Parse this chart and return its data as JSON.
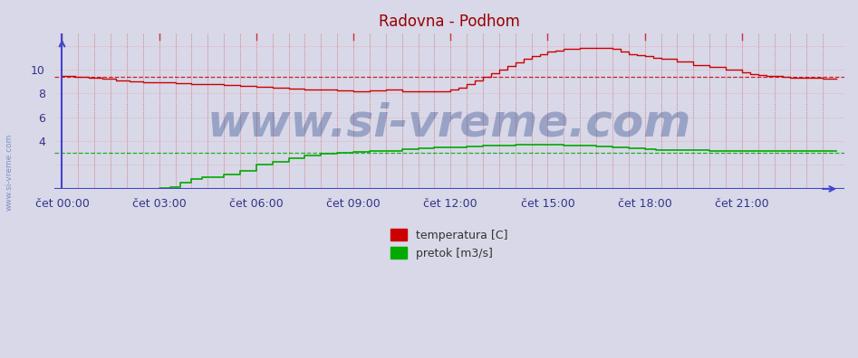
{
  "title": "Radovna - Podhom",
  "title_color": "#990000",
  "bg_color": "#d8d8e8",
  "plot_bg_color": "#d8d8e8",
  "xlabel": "",
  "ylabel": "",
  "ylim": [
    0,
    13.0
  ],
  "xlim_min": 0,
  "xlim_max": 287,
  "yticks": [
    4,
    6,
    8,
    10
  ],
  "xtick_labels": [
    "čet 00:00",
    "čet 03:00",
    "čet 06:00",
    "čet 09:00",
    "čet 12:00",
    "čet 15:00",
    "čet 18:00",
    "čet 21:00"
  ],
  "xtick_positions": [
    0,
    36,
    72,
    108,
    144,
    180,
    216,
    252
  ],
  "temp_color": "#cc0000",
  "flow_color": "#00aa00",
  "ref_temp": 9.4,
  "ref_flow": 3.05,
  "watermark": "www.si-vreme.com",
  "legend_labels": [
    "temperatura [C]",
    "pretok [m3/s]"
  ],
  "legend_colors": [
    "#cc0000",
    "#00aa00"
  ],
  "axis_color": "#4444cc",
  "grid_color_v": "#cc4444",
  "grid_color_h": "#ee9999",
  "fontsize_title": 12,
  "fontsize_ticks": 9,
  "fontsize_legend": 9,
  "fontsize_watermark": 36,
  "watermark_color": "#0a2a7a",
  "watermark_alpha": 0.3,
  "sidebar_text": "www.si-vreme.com",
  "sidebar_color": "#3355aa",
  "sidebar_alpha": 0.55,
  "n_points": 288
}
